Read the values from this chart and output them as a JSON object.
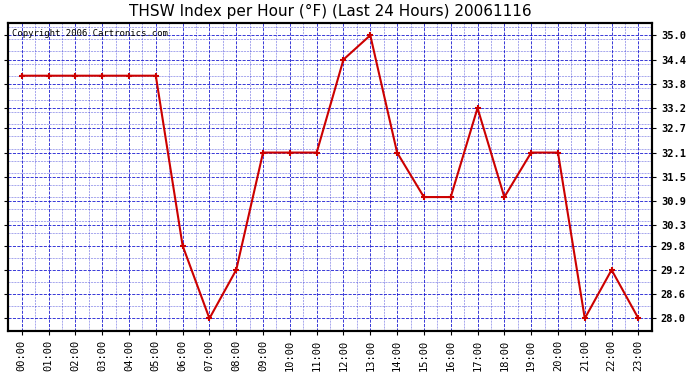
{
  "title": "THSW Index per Hour (°F) (Last 24 Hours) 20061116",
  "copyright": "Copyright 2006 Cartronics.com",
  "hours": [
    "00:00",
    "01:00",
    "02:00",
    "03:00",
    "04:00",
    "05:00",
    "06:00",
    "07:00",
    "08:00",
    "09:00",
    "10:00",
    "11:00",
    "12:00",
    "13:00",
    "14:00",
    "15:00",
    "16:00",
    "17:00",
    "18:00",
    "19:00",
    "20:00",
    "21:00",
    "22:00",
    "23:00"
  ],
  "values": [
    34.0,
    34.0,
    34.0,
    34.0,
    34.0,
    34.0,
    29.8,
    28.0,
    29.2,
    32.1,
    32.1,
    32.1,
    34.4,
    35.0,
    32.1,
    31.0,
    31.0,
    33.2,
    31.0,
    32.1,
    32.1,
    28.0,
    29.2,
    28.0
  ],
  "ylim_min": 27.7,
  "ylim_max": 35.3,
  "yticks": [
    28.0,
    28.6,
    29.2,
    29.8,
    30.3,
    30.9,
    31.5,
    32.1,
    32.7,
    33.2,
    33.8,
    34.4,
    35.0
  ],
  "line_color": "#cc0000",
  "marker_color": "#cc0000",
  "fig_bg_color": "#ffffff",
  "plot_bg_color": "#ffffff",
  "grid_color": "#0000cc",
  "border_color": "#000000",
  "title_color": "#000000",
  "copyright_color": "#000000",
  "tick_label_color": "#000000",
  "right_axis_color": "#000000",
  "title_fontsize": 11,
  "tick_fontsize": 7.5,
  "copyright_fontsize": 6.5
}
